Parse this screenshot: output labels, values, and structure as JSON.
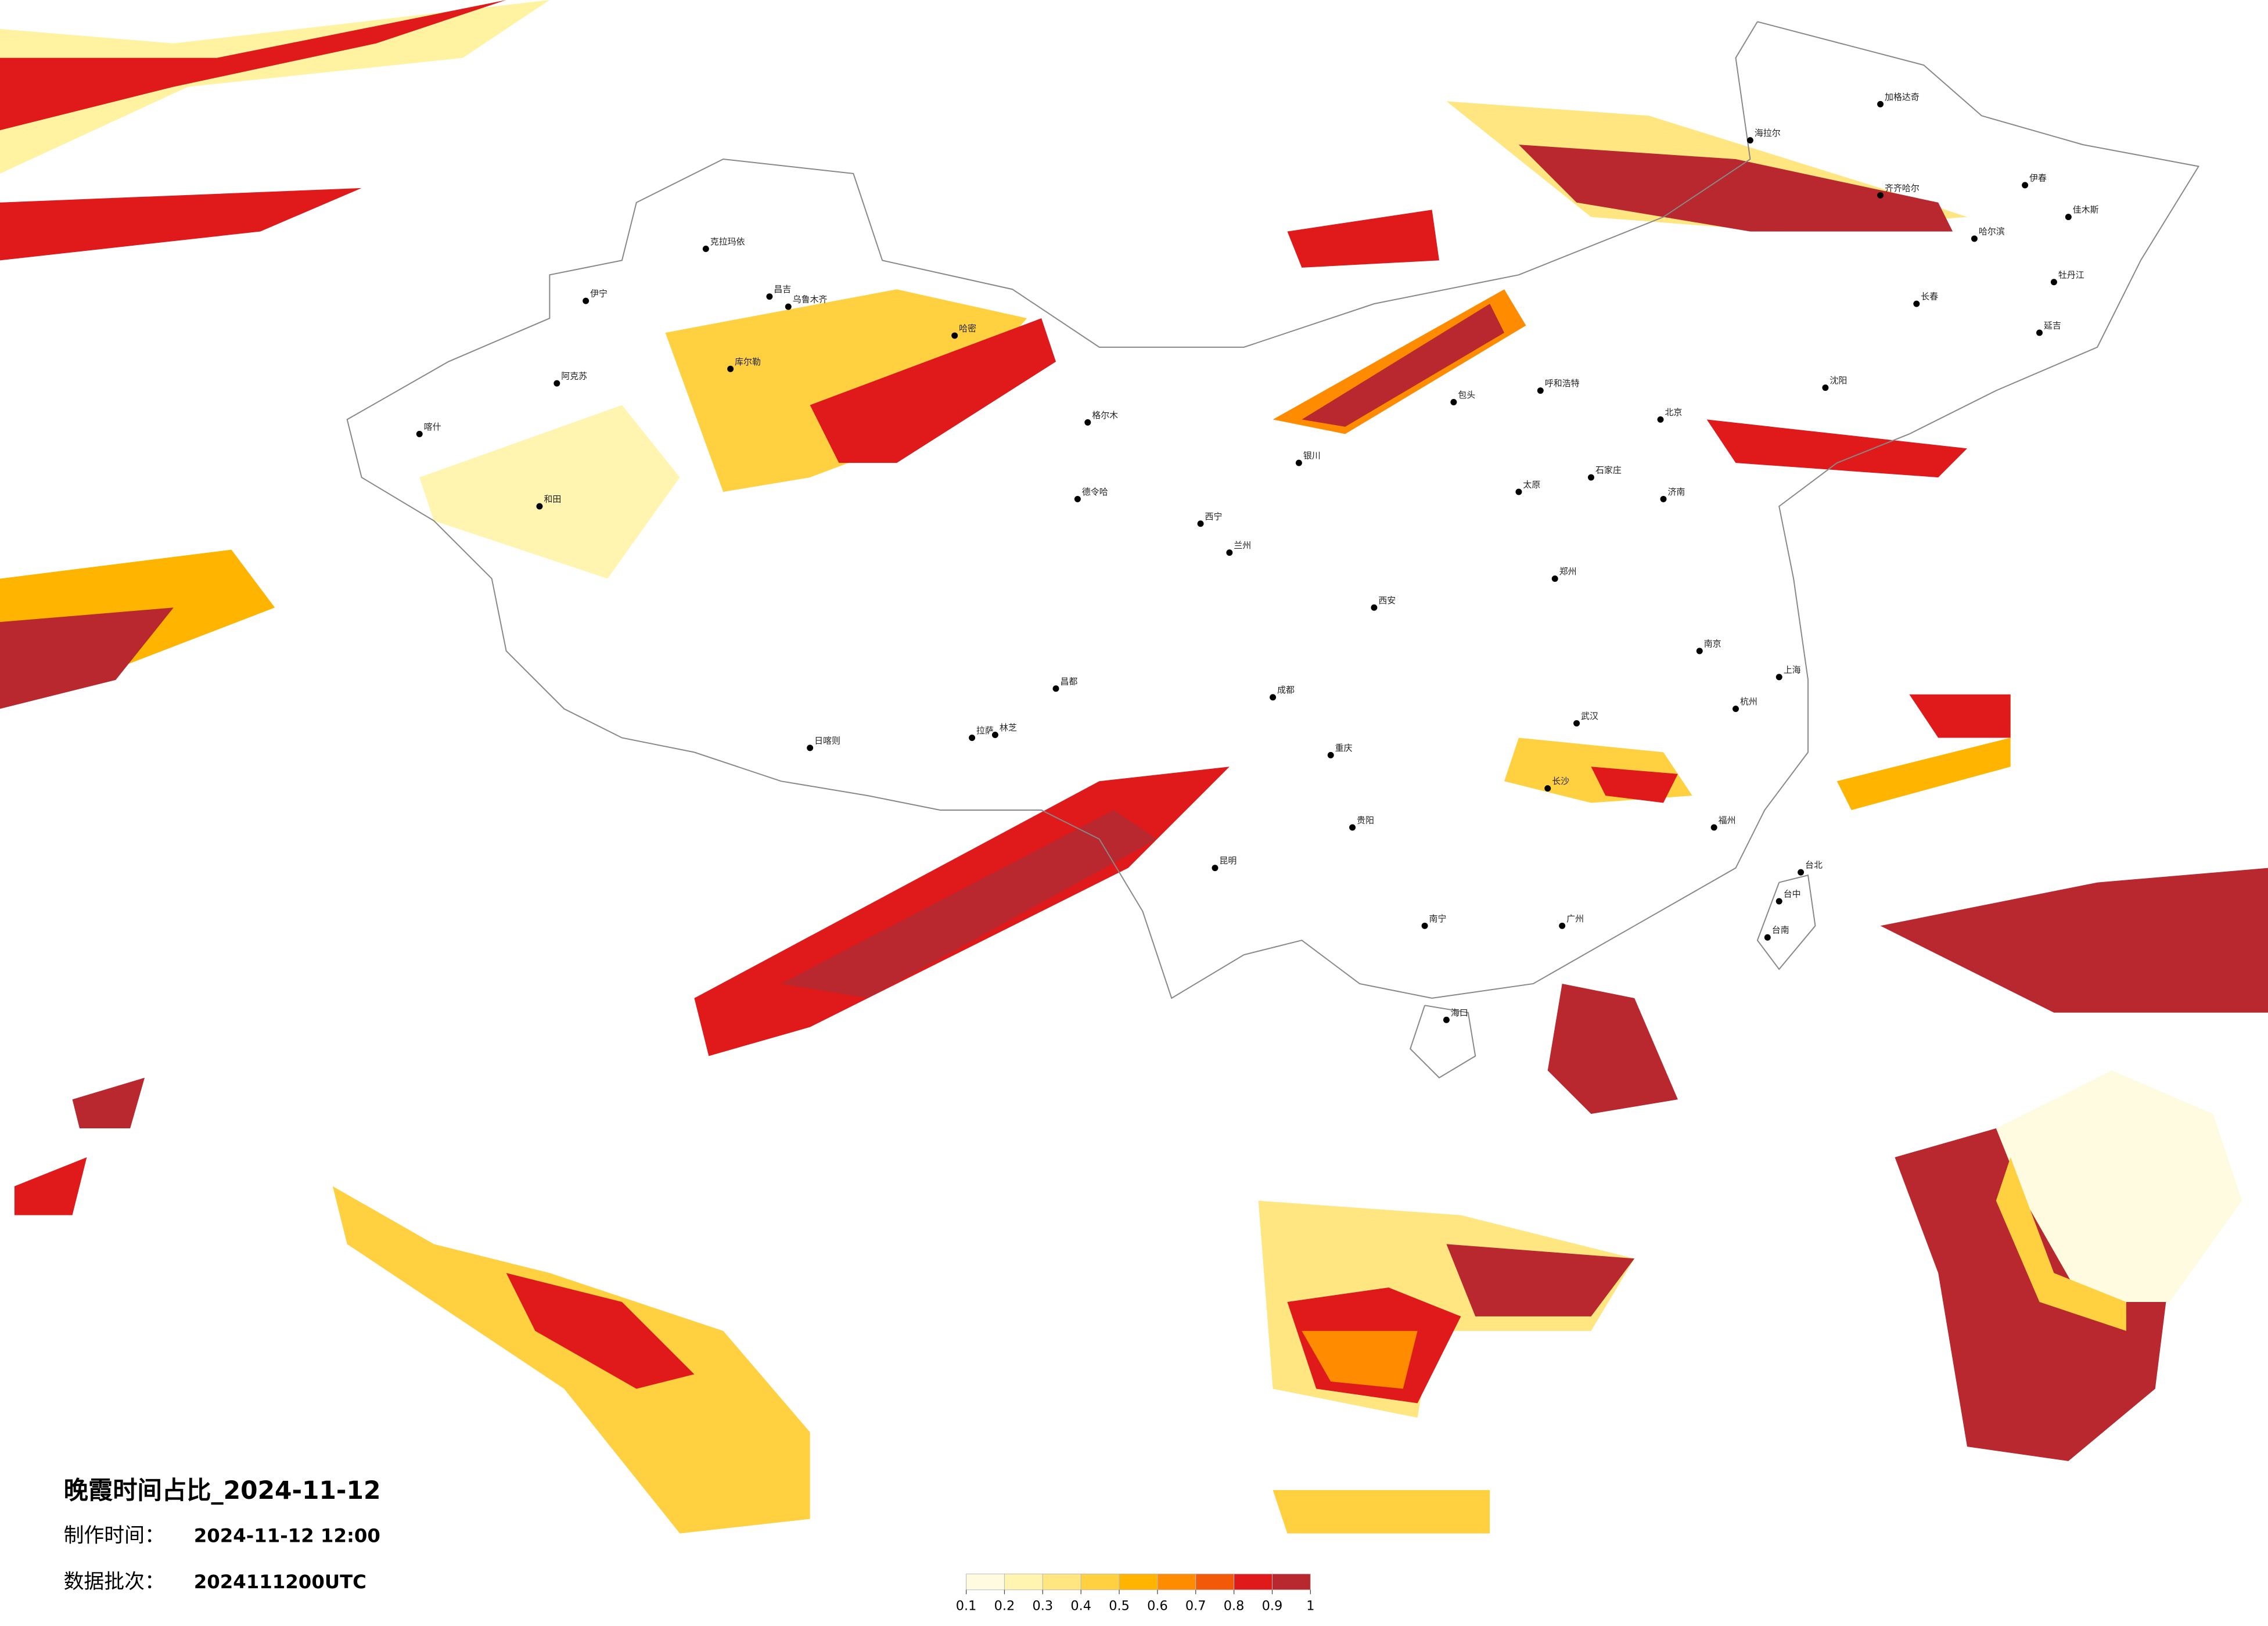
{
  "header": {
    "title": "晚霞时间占比_2024-11-12",
    "made_label": "制作时间：",
    "made_value": "2024-11-12 12:00",
    "batch_label": "数据批次：",
    "batch_value": "2024111200UTC"
  },
  "legend": {
    "ticks": [
      0.1,
      0.2,
      0.3,
      0.4,
      0.5,
      0.6,
      0.7,
      0.8,
      0.9,
      1
    ],
    "colors": [
      "#fffbe0",
      "#fff4b0",
      "#ffe680",
      "#ffd040",
      "#ffb400",
      "#ff8c00",
      "#f25a0a",
      "#e01a1a",
      "#b8282e"
    ]
  },
  "cities": [
    "伊宁",
    "克拉玛依",
    "阿克苏",
    "喀什",
    "和田",
    "昌吉",
    "乌鲁木齐",
    "库尔勒",
    "哈密",
    "格尔木",
    "德令哈",
    "西宁",
    "兰州",
    "银川",
    "包头",
    "呼和浩特",
    "日喀则",
    "拉萨",
    "林芝",
    "昌都",
    "成都",
    "重庆",
    "昆明",
    "贵阳",
    "南宁",
    "广州",
    "海口",
    "福州",
    "台北",
    "台中",
    "台南",
    "杭州",
    "上海",
    "南京",
    "武汉",
    "长沙",
    "郑州",
    "西安",
    "太原",
    "石家庄",
    "济南",
    "北京",
    "沈阳",
    "长春",
    "哈尔滨",
    "齐齐哈尔",
    "海拉尔",
    "加格达奇",
    "伊春",
    "佳木斯",
    "牡丹江",
    "延吉"
  ]
}
